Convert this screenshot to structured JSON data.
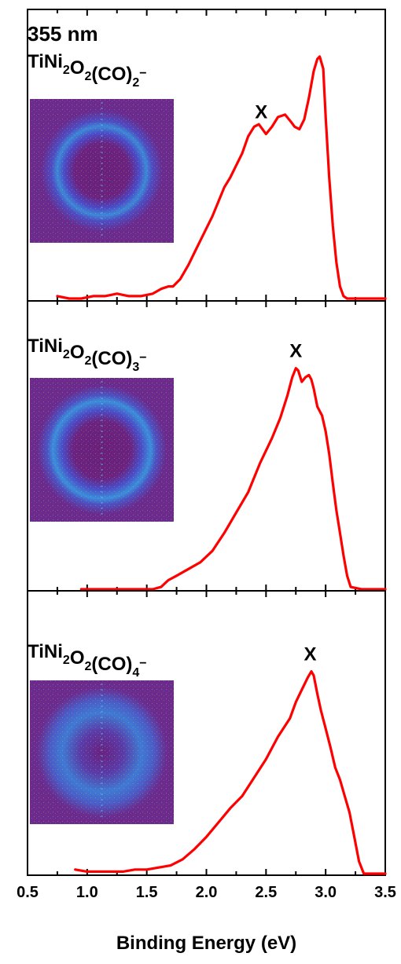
{
  "chart_data": {
    "type": "line",
    "xlabel": "Binding Energy (eV)",
    "xlim": [
      0.5,
      3.5
    ],
    "xticks": [
      "0.5",
      "1.0",
      "1.5",
      "2.0",
      "2.5",
      "3.0",
      "3.5"
    ],
    "line_color": "#ff0000",
    "inset_image": "photoelectron-image",
    "panels": [
      {
        "label_lines": [
          "355 nm"
        ],
        "species": {
          "base": "TiNi",
          "sub1": "2",
          "mid": "O",
          "sub2": "2",
          "group": "(CO)",
          "sub3": "2",
          "charge": "−"
        },
        "peak_marker": "X",
        "peak_x": 2.46,
        "x": [
          0.75,
          0.85,
          0.95,
          1.05,
          1.15,
          1.25,
          1.35,
          1.45,
          1.55,
          1.62,
          1.68,
          1.72,
          1.78,
          1.85,
          1.9,
          1.95,
          2.0,
          2.05,
          2.1,
          2.15,
          2.2,
          2.25,
          2.3,
          2.35,
          2.4,
          2.44,
          2.47,
          2.5,
          2.55,
          2.6,
          2.66,
          2.71,
          2.74,
          2.78,
          2.82,
          2.86,
          2.9,
          2.93,
          2.95,
          2.98,
          3.0,
          3.03,
          3.06,
          3.09,
          3.12,
          3.15,
          3.18,
          3.25,
          3.35,
          3.5
        ],
        "y": [
          0.01,
          0.0,
          0.0,
          0.01,
          0.01,
          0.02,
          0.01,
          0.01,
          0.02,
          0.04,
          0.05,
          0.05,
          0.08,
          0.14,
          0.19,
          0.24,
          0.29,
          0.34,
          0.4,
          0.46,
          0.5,
          0.55,
          0.6,
          0.67,
          0.71,
          0.72,
          0.7,
          0.68,
          0.71,
          0.75,
          0.76,
          0.73,
          0.71,
          0.7,
          0.74,
          0.83,
          0.94,
          0.99,
          1.0,
          0.95,
          0.75,
          0.5,
          0.3,
          0.15,
          0.05,
          0.01,
          0.0,
          0.0,
          0.0,
          0.0
        ]
      },
      {
        "label_lines": [],
        "species": {
          "base": "TiNi",
          "sub1": "2",
          "mid": "O",
          "sub2": "2",
          "group": "(CO)",
          "sub3": "3",
          "charge": "−"
        },
        "peak_marker": "X",
        "peak_x": 2.75,
        "x": [
          0.95,
          1.05,
          1.15,
          1.25,
          1.35,
          1.45,
          1.55,
          1.62,
          1.68,
          1.75,
          1.85,
          1.95,
          2.05,
          2.15,
          2.25,
          2.35,
          2.45,
          2.55,
          2.62,
          2.68,
          2.72,
          2.75,
          2.77,
          2.8,
          2.83,
          2.86,
          2.88,
          2.9,
          2.93,
          2.97,
          3.0,
          3.03,
          3.06,
          3.09,
          3.12,
          3.15,
          3.18,
          3.21,
          3.3,
          3.5
        ],
        "y": [
          0.0,
          0.0,
          0.0,
          0.0,
          0.0,
          0.0,
          0.0,
          0.01,
          0.04,
          0.06,
          0.09,
          0.12,
          0.17,
          0.25,
          0.34,
          0.43,
          0.56,
          0.67,
          0.76,
          0.86,
          0.94,
          0.98,
          0.97,
          0.92,
          0.94,
          0.95,
          0.93,
          0.89,
          0.81,
          0.77,
          0.7,
          0.6,
          0.47,
          0.35,
          0.25,
          0.15,
          0.06,
          0.01,
          0.0,
          0.0
        ]
      },
      {
        "label_lines": [],
        "species": {
          "base": "TiNi",
          "sub1": "2",
          "mid": "O",
          "sub2": "2",
          "group": "(CO)",
          "sub3": "4",
          "charge": "−"
        },
        "peak_marker": "X",
        "peak_x": 2.87,
        "x": [
          0.9,
          1.0,
          1.1,
          1.2,
          1.3,
          1.4,
          1.5,
          1.6,
          1.7,
          1.8,
          1.9,
          2.0,
          2.1,
          2.2,
          2.3,
          2.4,
          2.5,
          2.6,
          2.7,
          2.75,
          2.8,
          2.85,
          2.88,
          2.9,
          2.93,
          2.96,
          3.0,
          3.04,
          3.08,
          3.12,
          3.16,
          3.2,
          3.24,
          3.28,
          3.32,
          3.4,
          3.5
        ],
        "y": [
          0.02,
          0.01,
          0.01,
          0.01,
          0.01,
          0.02,
          0.02,
          0.03,
          0.04,
          0.07,
          0.12,
          0.18,
          0.25,
          0.32,
          0.38,
          0.47,
          0.56,
          0.67,
          0.76,
          0.84,
          0.9,
          0.96,
          0.99,
          0.97,
          0.88,
          0.8,
          0.71,
          0.62,
          0.52,
          0.46,
          0.38,
          0.3,
          0.18,
          0.06,
          0.0,
          0.0,
          0.0
        ]
      }
    ]
  }
}
